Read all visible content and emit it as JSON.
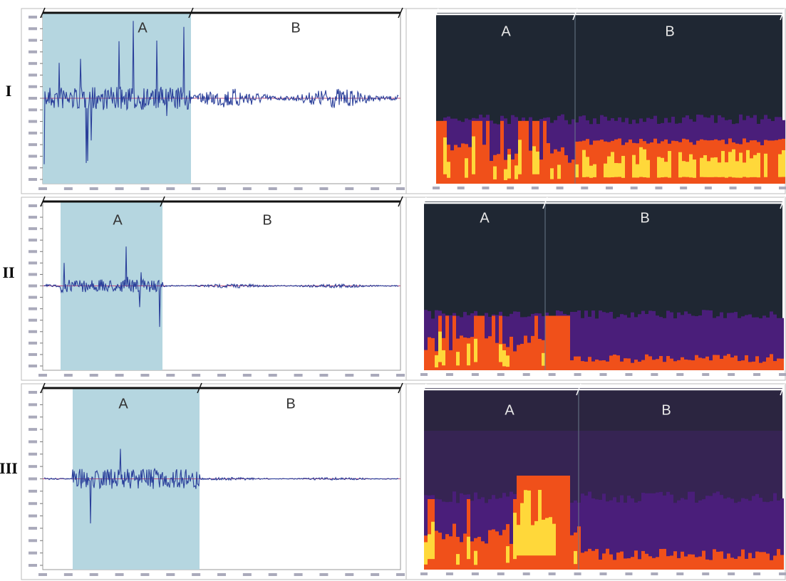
{
  "rows": [
    {
      "label": "I",
      "waveform": {
        "segments": [
          "A",
          "B"
        ]
      },
      "spectrogram": {
        "segments": [
          "A",
          "B"
        ]
      }
    },
    {
      "label": "II",
      "waveform": {
        "segments": [
          "A",
          "B"
        ]
      },
      "spectrogram": {
        "segments": [
          "A",
          "B"
        ]
      }
    },
    {
      "label": "III",
      "waveform": {
        "segments": [
          "A",
          "B"
        ]
      },
      "spectrogram": {
        "segments": [
          "A",
          "B"
        ]
      }
    }
  ]
}
